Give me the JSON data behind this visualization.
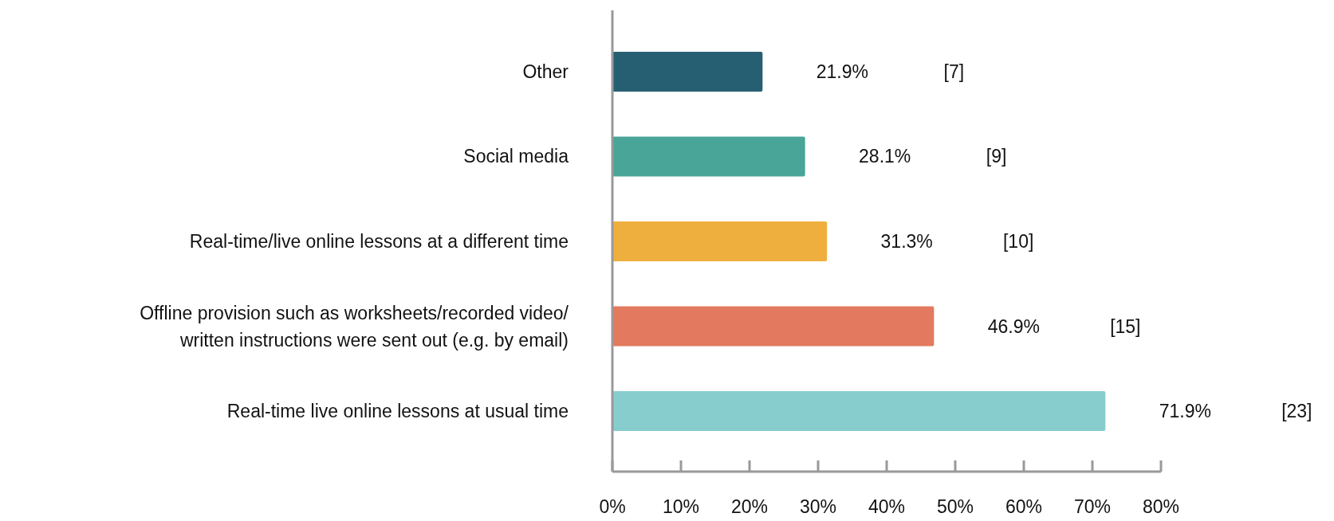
{
  "chart_data": {
    "type": "bar",
    "orientation": "horizontal",
    "categories": [
      "Other",
      "Social media",
      "Real-time/live online lessons at a different time",
      "Offline provision such as worksheets/recorded video/\nwritten instructions were sent out (e.g. by email)",
      "Real-time live online lessons at usual time"
    ],
    "values": [
      21.9,
      28.1,
      31.3,
      46.9,
      71.9
    ],
    "colors": [
      "#275f72",
      "#48a597",
      "#eeaf3f",
      "#e3795f",
      "#88cdce"
    ],
    "value_labels": [
      "21.9%",
      "28.1%",
      "31.3%",
      "46.9%",
      "71.9%"
    ],
    "annotations": [
      "[7]",
      "[9]",
      "[10]",
      "[15]",
      "[23]"
    ],
    "xlim": [
      0,
      80
    ],
    "xticks": [
      {
        "value": 0,
        "label": "0%"
      },
      {
        "value": 10,
        "label": "10%"
      },
      {
        "value": 20,
        "label": "20%"
      },
      {
        "value": 30,
        "label": "30%"
      },
      {
        "value": 40,
        "label": "40%"
      },
      {
        "value": 50,
        "label": "50%"
      },
      {
        "value": 60,
        "label": "60%"
      },
      {
        "value": 70,
        "label": "70%"
      },
      {
        "value": 80,
        "label": "80%"
      }
    ],
    "grid": false
  }
}
